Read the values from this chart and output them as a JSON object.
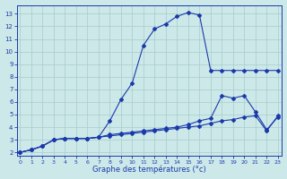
{
  "xlabel": "Graphe des températures (°c)",
  "bg_color": "#cce8e8",
  "line_color": "#1a3aab",
  "grid_color": "#a8cccc",
  "x_ticks": [
    0,
    1,
    2,
    3,
    4,
    5,
    6,
    7,
    8,
    9,
    10,
    11,
    12,
    13,
    14,
    15,
    16,
    17,
    18,
    19,
    20,
    21,
    22,
    23
  ],
  "y_ticks": [
    2,
    3,
    4,
    5,
    6,
    7,
    8,
    9,
    10,
    11,
    12,
    13
  ],
  "ylim": [
    1.7,
    13.7
  ],
  "xlim": [
    -0.3,
    23.3
  ],
  "series1": [
    2.0,
    2.2,
    2.5,
    3.0,
    3.1,
    3.1,
    3.1,
    3.2,
    4.5,
    6.2,
    7.5,
    10.5,
    11.8,
    12.2,
    12.8,
    13.1,
    12.9,
    8.5,
    8.5,
    8.5,
    8.5,
    8.5,
    8.5,
    8.5
  ],
  "series2": [
    2.0,
    2.2,
    2.5,
    3.0,
    3.1,
    3.1,
    3.1,
    3.2,
    4.5,
    6.2,
    7.5,
    10.5,
    11.8,
    12.2,
    12.8,
    13.1,
    12.9,
    8.5,
    null,
    null,
    null,
    null,
    null,
    null
  ],
  "series3": [
    2.0,
    2.2,
    2.5,
    3.0,
    3.1,
    3.1,
    3.1,
    3.2,
    3.4,
    3.5,
    3.6,
    3.7,
    3.8,
    3.9,
    4.0,
    4.2,
    4.5,
    4.7,
    6.5,
    6.3,
    6.5,
    5.2,
    3.8,
    4.8
  ],
  "series4": [
    2.0,
    2.2,
    2.5,
    3.0,
    3.1,
    3.1,
    3.1,
    3.2,
    3.3,
    3.4,
    3.5,
    3.6,
    3.7,
    3.8,
    3.9,
    4.0,
    4.1,
    4.3,
    4.5,
    4.6,
    4.8,
    4.9,
    3.7,
    4.9
  ]
}
